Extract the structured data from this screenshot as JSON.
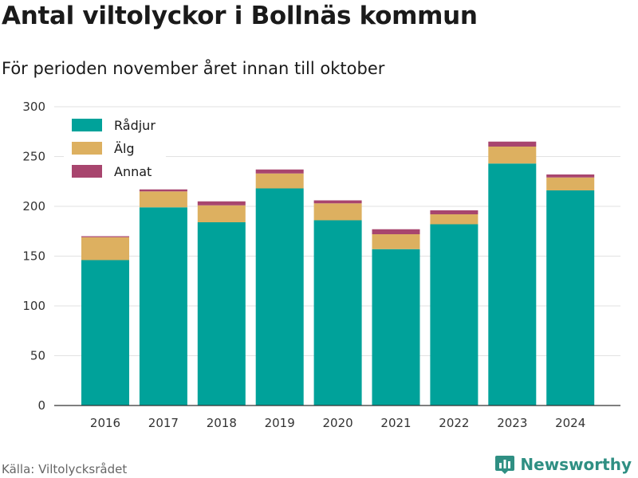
{
  "title": "Antal viltolyckor i Bollnäs kommun",
  "subtitle": "För perioden november året innan till oktober",
  "source": "Källa: Viltolycksrådet",
  "brand": "Newsworthy",
  "chart_data": {
    "type": "bar",
    "stacked": true,
    "categories": [
      "2016",
      "2017",
      "2018",
      "2019",
      "2020",
      "2021",
      "2022",
      "2023",
      "2024"
    ],
    "series": [
      {
        "name": "Rådjur",
        "color": "#00a29a",
        "values": [
          146,
          199,
          184,
          218,
          186,
          157,
          182,
          243,
          216
        ]
      },
      {
        "name": "Älg",
        "color": "#ddb060",
        "values": [
          23,
          16,
          17,
          15,
          17,
          15,
          10,
          17,
          13
        ]
      },
      {
        "name": "Annat",
        "color": "#a8456e",
        "values": [
          1,
          2,
          4,
          4,
          3,
          5,
          4,
          5,
          3
        ]
      }
    ],
    "ylim": [
      0,
      300
    ],
    "yticks": [
      0,
      50,
      100,
      150,
      200,
      250,
      300
    ],
    "grid": true,
    "legend": "top-left"
  }
}
